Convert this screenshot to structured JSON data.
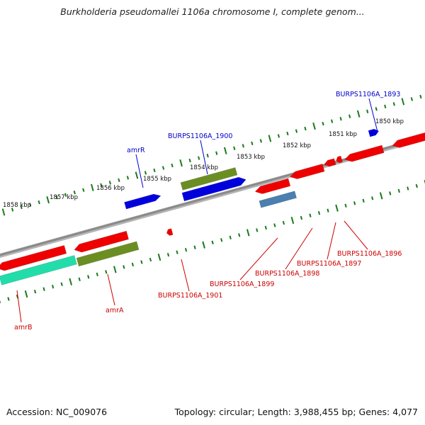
{
  "title": "Burkholderia pseudomallei 1106a chromosome I, complete genom...",
  "footer": {
    "accession": "Accession: NC_009076",
    "summary": "Topology: circular; Length: 3,988,455 bp; Genes: 4,077"
  },
  "scale_ticks": [
    {
      "label": "1850 kbp",
      "pos": 1850
    },
    {
      "label": "1851 kbp",
      "pos": 1851
    },
    {
      "label": "1852 kbp",
      "pos": 1852
    },
    {
      "label": "1853 kbp",
      "pos": 1853
    },
    {
      "label": "1854 kbp",
      "pos": 1854
    },
    {
      "label": "1855 kbp",
      "pos": 1855
    },
    {
      "label": "1856 kbp",
      "pos": 1856
    },
    {
      "label": "1857 kbp",
      "pos": 1857
    },
    {
      "label": "1858 kbp",
      "pos": 1858
    }
  ],
  "gene_labels": [
    {
      "name": "BURPS1106A_1893",
      "color": "#0000cc",
      "strand": "forward"
    },
    {
      "name": "BURPS1106A_1900",
      "color": "#0000cc",
      "strand": "forward"
    },
    {
      "name": "amrR",
      "color": "#0000cc",
      "strand": "forward"
    },
    {
      "name": "BURPS1106A_1896",
      "color": "#cc0000",
      "strand": "reverse"
    },
    {
      "name": "BURPS1106A_1897",
      "color": "#cc0000",
      "strand": "reverse"
    },
    {
      "name": "BURPS1106A_1898",
      "color": "#cc0000",
      "strand": "reverse"
    },
    {
      "name": "BURPS1106A_1899",
      "color": "#cc0000",
      "strand": "reverse"
    },
    {
      "name": "BURPS1106A_1901",
      "color": "#cc0000",
      "strand": "reverse"
    },
    {
      "name": "amrA",
      "color": "#cc0000",
      "strand": "reverse"
    },
    {
      "name": "amrB",
      "color": "#cc0000",
      "strand": "reverse"
    }
  ],
  "colors": {
    "backbone": "#8a8a8a",
    "tick": "#1a7a1a",
    "forward_gene": "#0000dd",
    "reverse_gene": "#ee0000",
    "cog_olive": "#6b8e23",
    "cog_steel": "#4a7fb0",
    "cog_aqua": "#22ddaa"
  }
}
